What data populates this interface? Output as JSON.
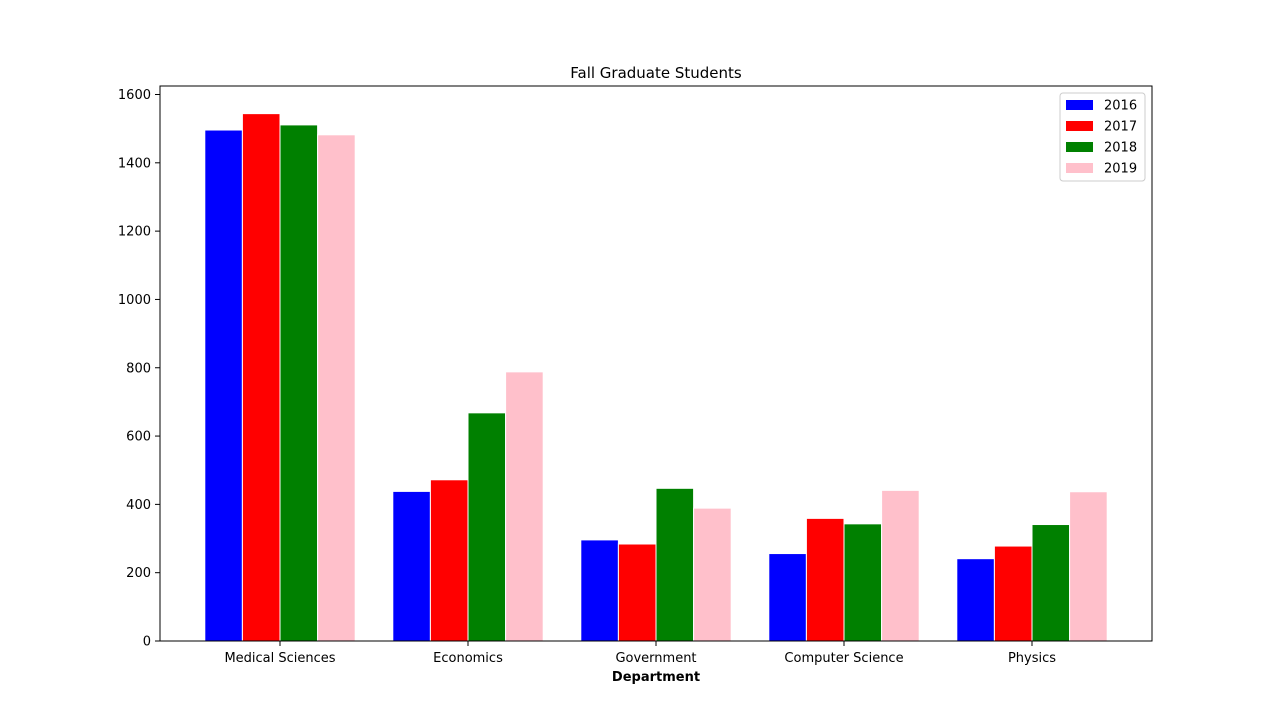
{
  "chart_data": {
    "type": "bar",
    "title": "Fall Graduate Students",
    "xlabel": "Department",
    "ylabel": "",
    "ylim": [
      0,
      1600
    ],
    "yticks": [
      0,
      200,
      400,
      600,
      800,
      1000,
      1200,
      1400,
      1600
    ],
    "grid": false,
    "legend_position": "top-right",
    "categories": [
      "Medical Sciences",
      "Economics",
      "Government",
      "Computer Science",
      "Physics"
    ],
    "series": [
      {
        "name": "2016",
        "color": "#0000ff",
        "values": [
          1496,
          438,
          296,
          256,
          241
        ]
      },
      {
        "name": "2017",
        "color": "#ff0000",
        "values": [
          1544,
          472,
          284,
          359,
          278
        ]
      },
      {
        "name": "2018",
        "color": "#008000",
        "values": [
          1511,
          668,
          447,
          343,
          341
        ]
      },
      {
        "name": "2019",
        "color": "#ffc0cb",
        "values": [
          1482,
          788,
          389,
          441,
          437
        ]
      }
    ]
  }
}
